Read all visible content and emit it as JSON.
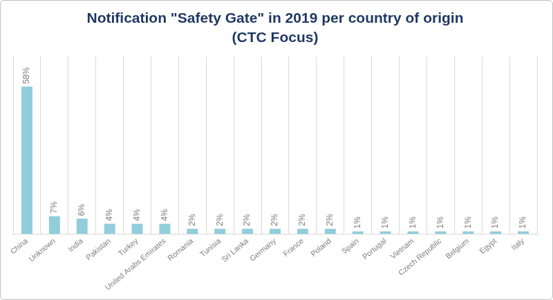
{
  "chart_data": {
    "type": "bar",
    "title": "Notification \"Safety Gate\" in 2019 per country of origin",
    "subtitle": "(CTC Focus)",
    "categories": [
      "China",
      "Unknown",
      "India",
      "Pakistan",
      "Turkey",
      "United Arabs Emirates",
      "Romania",
      "Tunisia",
      "Sri Lanka",
      "Germany",
      "France",
      "Poland",
      "Spain",
      "Portugal",
      "Vietnam",
      "Czech Republic",
      "Belgium",
      "Egypt",
      "Italy"
    ],
    "values": [
      58,
      7,
      6,
      4,
      4,
      4,
      2,
      2,
      2,
      2,
      2,
      2,
      1,
      1,
      1,
      1,
      1,
      1,
      1
    ],
    "value_labels": [
      "58%",
      "7%",
      "6%",
      "4%",
      "4%",
      "4%",
      "2%",
      "2%",
      "2%",
      "2%",
      "2%",
      "2%",
      "1%",
      "1%",
      "1%",
      "1%",
      "1%",
      "1%",
      "1%"
    ],
    "color": "#92cddc",
    "ylim": [
      0,
      70
    ],
    "grid": "x",
    "data_labels": true,
    "tick_labels": "x"
  }
}
